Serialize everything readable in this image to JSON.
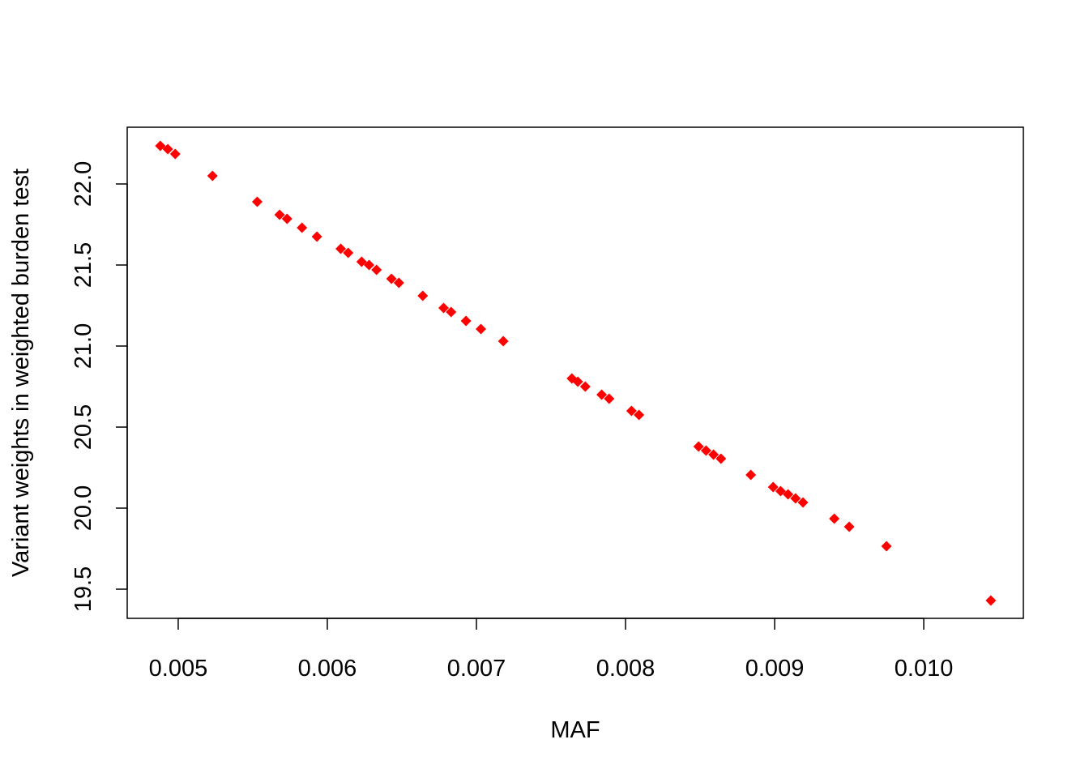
{
  "chart_data": {
    "type": "scatter",
    "x_label": "MAF",
    "y_label": "Variant weights in weighted burden test",
    "series": [
      {
        "color": "#ff0000",
        "x": [
          0.00488,
          0.00493,
          0.00498,
          0.00523,
          0.00553,
          0.00568,
          0.00573,
          0.00583,
          0.00593,
          0.00609,
          0.00614,
          0.00623,
          0.00628,
          0.00633,
          0.00643,
          0.00648,
          0.00664,
          0.00678,
          0.00683,
          0.00693,
          0.00703,
          0.00718,
          0.00764,
          0.00768,
          0.00773,
          0.00784,
          0.00789,
          0.00804,
          0.00809,
          0.00849,
          0.00854,
          0.00859,
          0.00864,
          0.00884,
          0.00899,
          0.00904,
          0.00909,
          0.00914,
          0.00919,
          0.0094,
          0.0095,
          0.00975,
          0.01045
        ],
        "values": [
          22.235,
          22.215,
          22.185,
          22.05,
          21.89,
          21.81,
          21.785,
          21.73,
          21.675,
          21.6,
          21.575,
          21.52,
          21.5,
          21.47,
          21.415,
          21.39,
          21.31,
          21.235,
          21.21,
          21.155,
          21.105,
          21.03,
          20.8,
          20.78,
          20.75,
          20.7,
          20.675,
          20.6,
          20.575,
          20.38,
          20.355,
          20.33,
          20.305,
          20.205,
          20.13,
          20.105,
          20.085,
          20.06,
          20.035,
          19.935,
          19.885,
          19.765,
          19.43
        ]
      }
    ],
    "xlim": [
      0.004658,
      0.010668
    ],
    "ylim": [
      19.32,
      22.35
    ],
    "xticks": [
      0.005,
      0.006,
      0.007,
      0.008,
      0.009,
      {
        "value": 0.01,
        "label": "0.010"
      }
    ],
    "yticks": [
      {
        "value": 19.5,
        "label": "19.5"
      },
      {
        "value": 20,
        "label": "20.0"
      },
      20.5,
      {
        "value": 21,
        "label": "21.0"
      },
      21.5,
      {
        "value": 22,
        "label": "22.0"
      }
    ],
    "grid": false
  }
}
